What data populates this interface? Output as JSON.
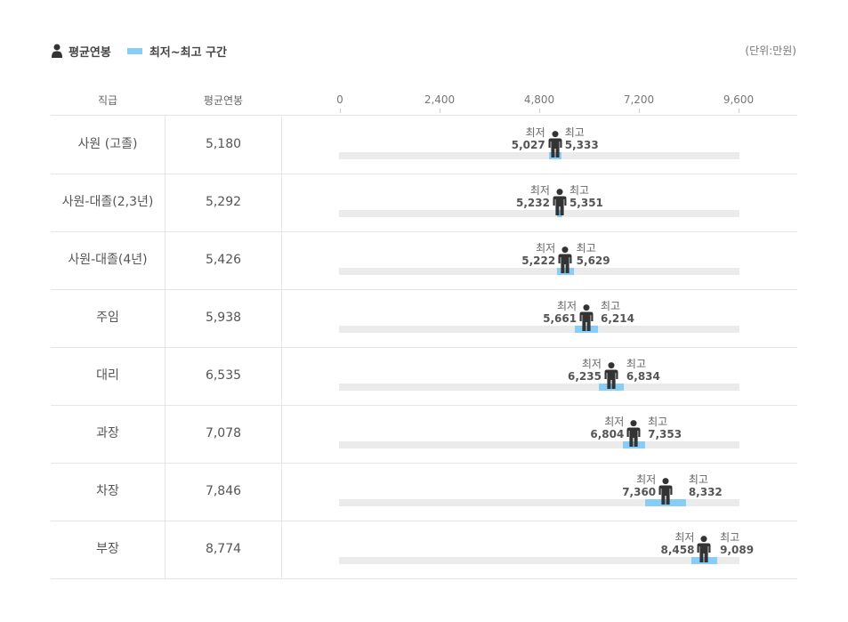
{
  "legend": {
    "avg_label": "평균연봉",
    "range_label": "최저~최고 구간"
  },
  "unit_label": "(단위:만원)",
  "headers": {
    "grade": "직급",
    "avg": "평균연봉"
  },
  "colors": {
    "range": "#88cdf6",
    "track": "#ebebeb",
    "person": "#333333"
  },
  "chart_data": {
    "type": "range",
    "title": "",
    "xlim": [
      0,
      9600
    ],
    "ticks": [
      "0",
      "2,400",
      "4,800",
      "7,200",
      "9,600"
    ],
    "tick_values": [
      0,
      2400,
      4800,
      7200,
      9600
    ],
    "min_label": "최저",
    "max_label": "최고",
    "rows": [
      {
        "grade": "사원 (고졸)",
        "avg": 5180,
        "avg_text": "5,180",
        "min": 5027,
        "min_text": "5,027",
        "max": 5333,
        "max_text": "5,333"
      },
      {
        "grade": "사원-대졸(2,3년)",
        "avg": 5292,
        "avg_text": "5,292",
        "min": 5232,
        "min_text": "5,232",
        "max": 5351,
        "max_text": "5,351"
      },
      {
        "grade": "사원-대졸(4년)",
        "avg": 5426,
        "avg_text": "5,426",
        "min": 5222,
        "min_text": "5,222",
        "max": 5629,
        "max_text": "5,629"
      },
      {
        "grade": "주임",
        "avg": 5938,
        "avg_text": "5,938",
        "min": 5661,
        "min_text": "5,661",
        "max": 6214,
        "max_text": "6,214"
      },
      {
        "grade": "대리",
        "avg": 6535,
        "avg_text": "6,535",
        "min": 6235,
        "min_text": "6,235",
        "max": 6834,
        "max_text": "6,834"
      },
      {
        "grade": "과장",
        "avg": 7078,
        "avg_text": "7,078",
        "min": 6804,
        "min_text": "6,804",
        "max": 7353,
        "max_text": "7,353"
      },
      {
        "grade": "차장",
        "avg": 7846,
        "avg_text": "7,846",
        "min": 7360,
        "min_text": "7,360",
        "max": 8332,
        "max_text": "8,332"
      },
      {
        "grade": "부장",
        "avg": 8774,
        "avg_text": "8,774",
        "min": 8458,
        "min_text": "8,458",
        "max": 9089,
        "max_text": "9,089"
      }
    ]
  }
}
